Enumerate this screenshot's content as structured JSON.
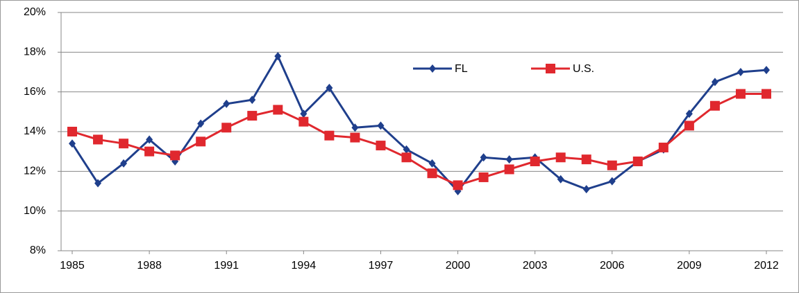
{
  "chart_data": {
    "type": "line",
    "x": [
      1985,
      1986,
      1987,
      1988,
      1989,
      1990,
      1991,
      1992,
      1993,
      1994,
      1995,
      1996,
      1997,
      1998,
      1999,
      2000,
      2001,
      2002,
      2003,
      2004,
      2005,
      2006,
      2007,
      2008,
      2009,
      2010,
      2011,
      2012
    ],
    "series": [
      {
        "name": "FL",
        "color": "#1f3f8c",
        "marker": "diamond",
        "values": [
          13.4,
          11.4,
          12.4,
          13.6,
          12.5,
          14.4,
          15.4,
          15.6,
          17.8,
          14.9,
          16.2,
          14.2,
          14.3,
          13.1,
          12.4,
          11.0,
          12.7,
          12.6,
          12.7,
          11.6,
          11.1,
          11.5,
          12.5,
          13.1,
          14.9,
          16.5,
          17.0,
          17.1
        ]
      },
      {
        "name": "U.S.",
        "color": "#e0282e",
        "marker": "square",
        "values": [
          14.0,
          13.6,
          13.4,
          13.0,
          12.8,
          13.5,
          14.2,
          14.8,
          15.1,
          14.5,
          13.8,
          13.7,
          13.3,
          12.7,
          11.9,
          11.3,
          11.7,
          12.1,
          12.5,
          12.7,
          12.6,
          12.3,
          12.5,
          13.2,
          14.3,
          15.3,
          15.9,
          15.9
        ]
      }
    ],
    "xlim": [
      1985,
      2012
    ],
    "xticks": [
      1985,
      1988,
      1991,
      1994,
      1997,
      2000,
      2003,
      2006,
      2009,
      2012
    ],
    "ylim": [
      8,
      20
    ],
    "yticks": [
      {
        "value": 8,
        "label": "8%"
      },
      {
        "value": 10,
        "label": "10%"
      },
      {
        "value": 12,
        "label": "12%"
      },
      {
        "value": 14,
        "label": "14%"
      },
      {
        "value": 16,
        "label": "16%"
      },
      {
        "value": 18,
        "label": "18%"
      },
      {
        "value": 20,
        "label": "20%"
      }
    ],
    "grid": true,
    "legend": "top-center"
  }
}
